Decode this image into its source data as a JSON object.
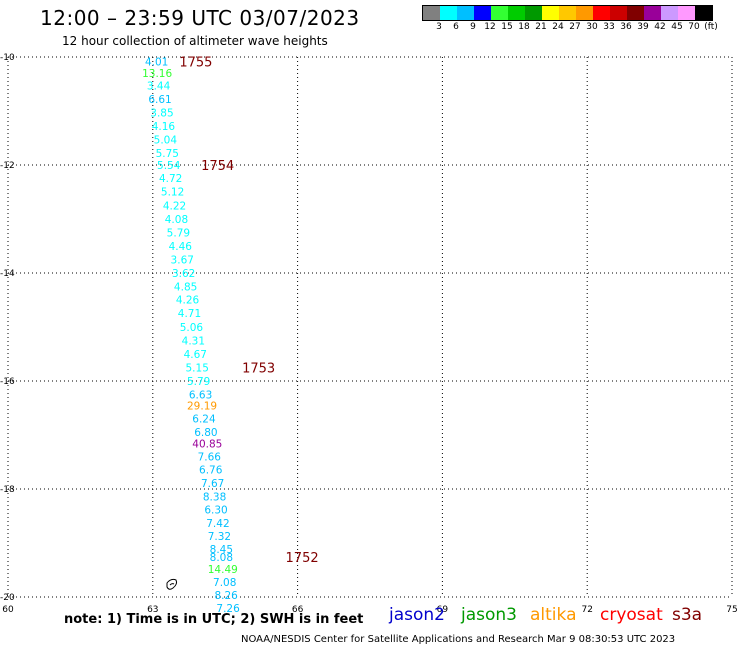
{
  "header": {
    "title": "12:00 – 23:59 UTC 03/07/2023",
    "subtitle": "12 hour collection of altimeter wave heights"
  },
  "scale": {
    "colors": [
      "#808080",
      "#00ffff",
      "#00bfff",
      "#0000ff",
      "#33ff33",
      "#00cc00",
      "#009900",
      "#ffff00",
      "#ffc800",
      "#ff9900",
      "#ff0000",
      "#cc0000",
      "#800000",
      "#990099",
      "#cc99ff",
      "#ff99ff",
      "#000000"
    ],
    "labels": [
      "3",
      "6",
      "9",
      "12",
      "15",
      "18",
      "21",
      "24",
      "27",
      "30",
      "33",
      "36",
      "39",
      "42",
      "45",
      "70",
      "(ft)"
    ]
  },
  "chart_data": {
    "type": "scatter",
    "xlim": [
      60,
      75
    ],
    "ylim": [
      -20,
      -10
    ],
    "x_ticks": [
      "60",
      "63",
      "66",
      "69",
      "72",
      "75"
    ],
    "y_ticks": [
      "-10",
      "-12",
      "-14",
      "-16",
      "-18",
      "-20"
    ],
    "grid": true,
    "series": [
      {
        "name": "altimeter SWH",
        "points": [
          {
            "x": 63.08,
            "y": -10.08,
            "label": "4.01",
            "color": "#00bfff"
          },
          {
            "x": 63.09,
            "y": -10.3,
            "label": "13.16",
            "color": "#33ff33"
          },
          {
            "x": 63.12,
            "y": -10.53,
            "label": "3.44",
            "color": "#00ffff"
          },
          {
            "x": 63.15,
            "y": -10.78,
            "label": "6.61",
            "color": "#00bfff"
          },
          {
            "x": 63.19,
            "y": -11.03,
            "label": "3.85",
            "color": "#00ffff"
          },
          {
            "x": 63.22,
            "y": -11.28,
            "label": "4.16",
            "color": "#00ffff"
          },
          {
            "x": 63.26,
            "y": -11.53,
            "label": "5.04",
            "color": "#00ffff"
          },
          {
            "x": 63.3,
            "y": -11.78,
            "label": "5.75",
            "color": "#00ffff"
          },
          {
            "x": 63.33,
            "y": -12.0,
            "label": "5.54",
            "color": "#00ffff"
          },
          {
            "x": 63.37,
            "y": -12.24,
            "label": "4.72",
            "color": "#00ffff"
          },
          {
            "x": 63.41,
            "y": -12.49,
            "label": "5.12",
            "color": "#00ffff"
          },
          {
            "x": 63.45,
            "y": -12.75,
            "label": "4.22",
            "color": "#00ffff"
          },
          {
            "x": 63.49,
            "y": -13.0,
            "label": "4.08",
            "color": "#00ffff"
          },
          {
            "x": 63.53,
            "y": -13.25,
            "label": "5.79",
            "color": "#00ffff"
          },
          {
            "x": 63.57,
            "y": -13.5,
            "label": "4.46",
            "color": "#00ffff"
          },
          {
            "x": 63.61,
            "y": -13.75,
            "label": "3.67",
            "color": "#00ffff"
          },
          {
            "x": 63.64,
            "y": -14.0,
            "label": "3.62",
            "color": "#00ffff"
          },
          {
            "x": 63.68,
            "y": -14.25,
            "label": "4.85",
            "color": "#00ffff"
          },
          {
            "x": 63.72,
            "y": -14.49,
            "label": "4.26",
            "color": "#00ffff"
          },
          {
            "x": 63.76,
            "y": -14.74,
            "label": "4.71",
            "color": "#00ffff"
          },
          {
            "x": 63.8,
            "y": -15.0,
            "label": "5.06",
            "color": "#00ffff"
          },
          {
            "x": 63.84,
            "y": -15.25,
            "label": "4.31",
            "color": "#00ffff"
          },
          {
            "x": 63.88,
            "y": -15.5,
            "label": "4.67",
            "color": "#00ffff"
          },
          {
            "x": 63.92,
            "y": -15.75,
            "label": "5.15",
            "color": "#00ffff"
          },
          {
            "x": 63.95,
            "y": -16.0,
            "label": "5.79",
            "color": "#00ffff"
          },
          {
            "x": 63.99,
            "y": -16.25,
            "label": "6.63",
            "color": "#00bfff"
          },
          {
            "x": 64.02,
            "y": -16.45,
            "label": "29.19",
            "color": "#ff9900"
          },
          {
            "x": 64.06,
            "y": -16.69,
            "label": "6.24",
            "color": "#00bfff"
          },
          {
            "x": 64.1,
            "y": -16.94,
            "label": "6.80",
            "color": "#00bfff"
          },
          {
            "x": 64.13,
            "y": -17.16,
            "label": "40.85",
            "color": "#990099"
          },
          {
            "x": 64.17,
            "y": -17.4,
            "label": "7.66",
            "color": "#00bfff"
          },
          {
            "x": 64.2,
            "y": -17.64,
            "label": "6.76",
            "color": "#00bfff"
          },
          {
            "x": 64.24,
            "y": -17.89,
            "label": "7.67",
            "color": "#00bfff"
          },
          {
            "x": 64.28,
            "y": -18.14,
            "label": "8.38",
            "color": "#00bfff"
          },
          {
            "x": 64.31,
            "y": -18.38,
            "label": "6.30",
            "color": "#00bfff"
          },
          {
            "x": 64.35,
            "y": -18.63,
            "label": "7.42",
            "color": "#00bfff"
          },
          {
            "x": 64.38,
            "y": -18.87,
            "label": "7.32",
            "color": "#00bfff"
          },
          {
            "x": 64.42,
            "y": -19.11,
            "label": "8.45",
            "color": "#00bfff"
          },
          {
            "x": 64.42,
            "y": -19.26,
            "label": "8.08",
            "color": "#00bfff"
          },
          {
            "x": 64.45,
            "y": -19.48,
            "label": "14.49",
            "color": "#33ff33"
          },
          {
            "x": 64.49,
            "y": -19.72,
            "label": "7.08",
            "color": "#00bfff"
          },
          {
            "x": 64.52,
            "y": -19.96,
            "label": "8.26",
            "color": "#00bfff"
          },
          {
            "x": 64.56,
            "y": -20.2,
            "label": "7.26",
            "color": "#00bfff"
          }
        ]
      },
      {
        "name": "time marks",
        "points": [
          {
            "x": 63.55,
            "y": -10.08,
            "label": "1755",
            "color": "#800000"
          },
          {
            "x": 64.0,
            "y": -12.0,
            "label": "1754",
            "color": "#800000"
          },
          {
            "x": 64.85,
            "y": -15.75,
            "label": "1753",
            "color": "#800000"
          },
          {
            "x": 65.75,
            "y": -19.26,
            "label": "1752",
            "color": "#800000"
          }
        ]
      }
    ]
  },
  "footer": {
    "note": "note: 1) Time is in UTC; 2) SWH is in feet",
    "legend": [
      {
        "label": "jason2",
        "color": "#0000cc"
      },
      {
        "label": "jason3",
        "color": "#009900"
      },
      {
        "label": "altika",
        "color": "#ff9900"
      },
      {
        "label": "cryosat",
        "color": "#ff0000"
      },
      {
        "label": "s3a",
        "color": "#800000"
      }
    ],
    "credit": "NOAA/NESDIS Center for Satellite Applications and Research    Mar  9 08:30:53 UTC 2023"
  }
}
